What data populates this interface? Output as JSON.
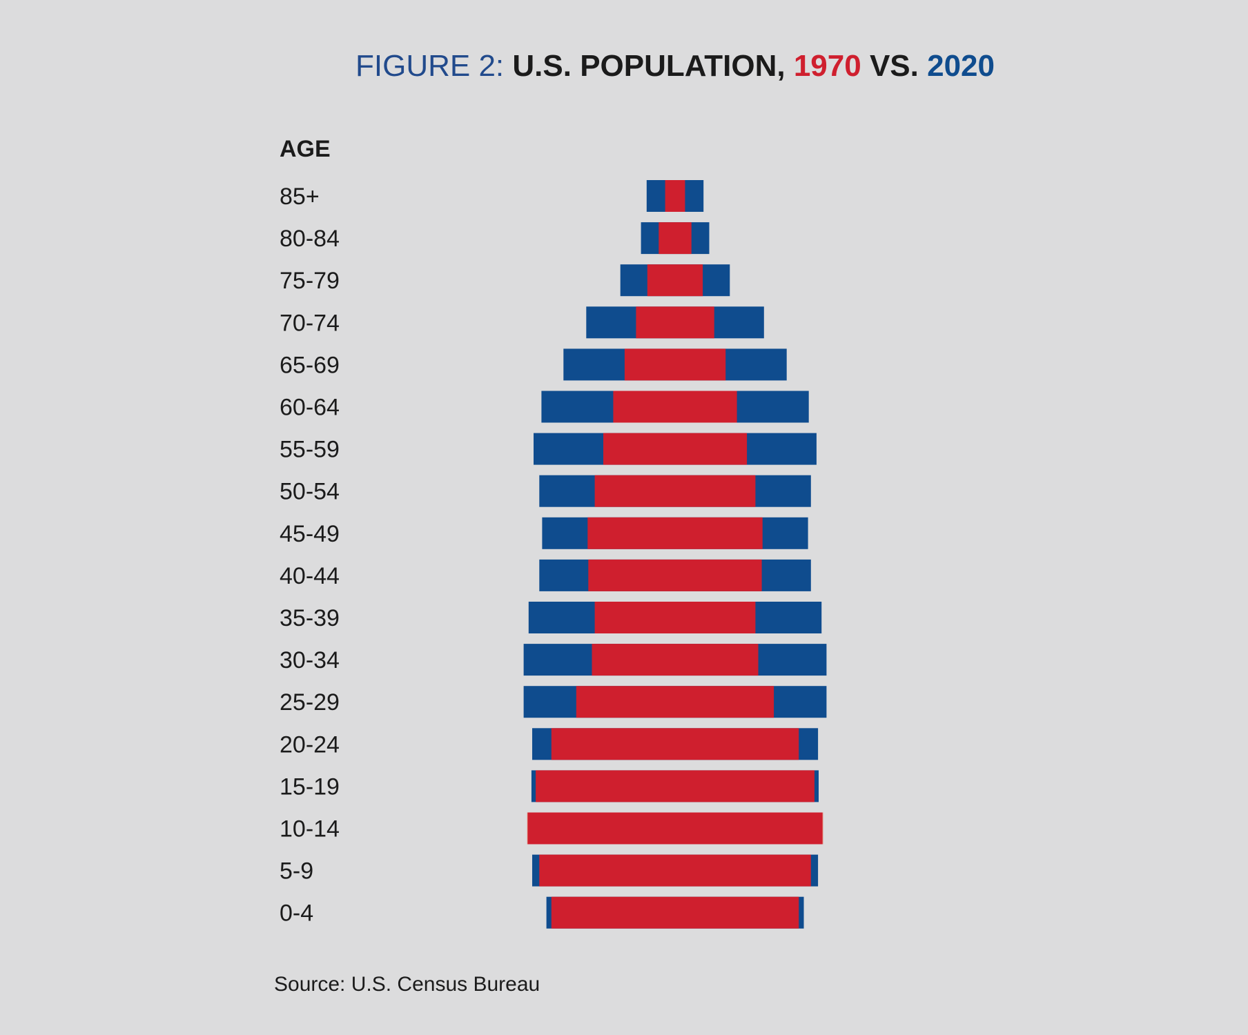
{
  "title": {
    "prefix": "FIGURE 2: ",
    "main": "U.S. POPULATION, ",
    "year1": "1970",
    "vs": " VS. ",
    "year2": "2020"
  },
  "source": "Source: U.S. Census Bureau",
  "colors": {
    "background": "#dcdcdd",
    "title_prefix": "#214a8c",
    "title_main": "#1b1b1b",
    "series_1970": "#cf1f2e",
    "series_2020": "#0f4c8e",
    "overlap_1970_exceeds": "#dc5f55",
    "text": "#1b1b1b"
  },
  "chart_data": {
    "type": "bar",
    "orientation": "horizontal-centered",
    "ylabel": "AGE",
    "categories": [
      "85+",
      "80-84",
      "75-79",
      "70-74",
      "65-69",
      "60-64",
      "55-59",
      "50-54",
      "45-49",
      "40-44",
      "35-39",
      "30-34",
      "25-29",
      "20-24",
      "15-19",
      "10-14",
      "5-9",
      "0-4"
    ],
    "series": [
      {
        "name": "1970",
        "values": [
          1.4,
          2.3,
          3.9,
          5.5,
          7.1,
          8.7,
          10.1,
          11.3,
          12.3,
          12.2,
          11.3,
          11.7,
          13.9,
          17.4,
          19.6,
          20.8,
          19.1,
          17.4
        ]
      },
      {
        "name": "2020",
        "values": [
          4.0,
          4.8,
          7.7,
          12.5,
          15.7,
          18.8,
          19.9,
          19.1,
          18.7,
          19.1,
          20.6,
          21.3,
          21.3,
          20.1,
          20.2,
          20.7,
          20.1,
          18.1
        ]
      }
    ]
  }
}
